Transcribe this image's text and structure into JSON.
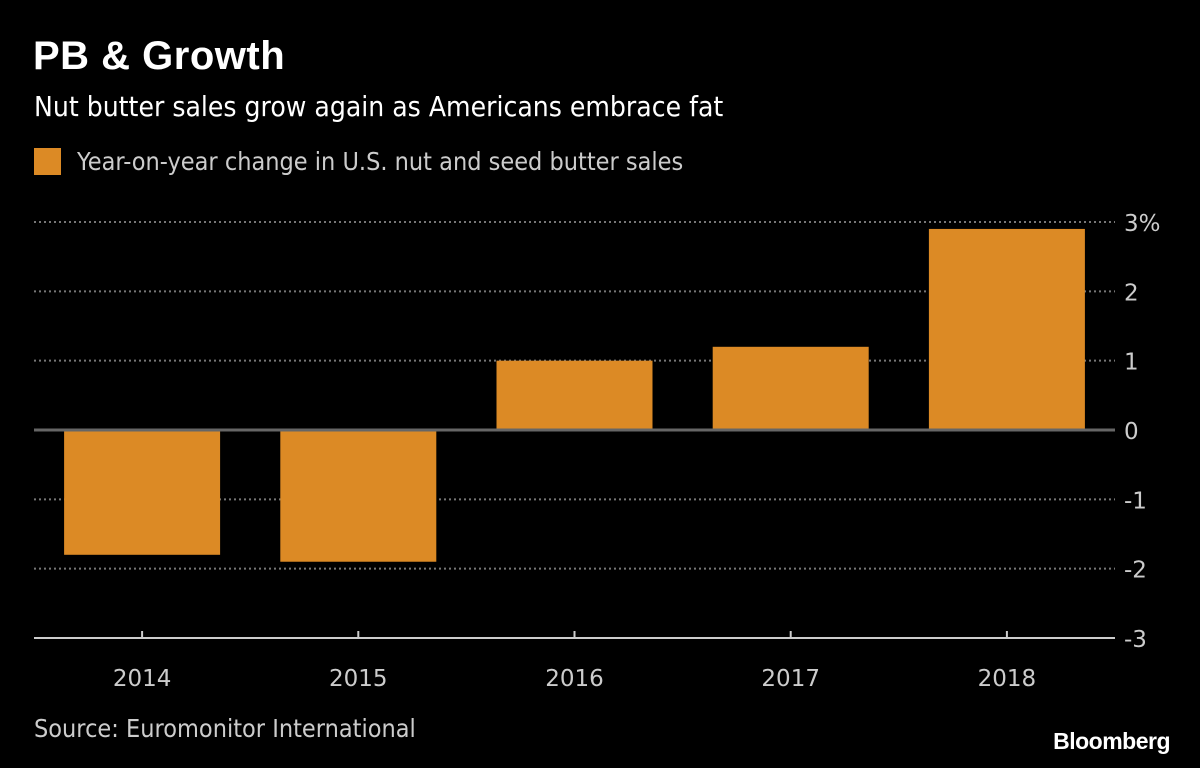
{
  "chart_data": {
    "type": "bar",
    "title": "PB & Growth",
    "subtitle": "Nut butter sales grow again as Americans embrace fat",
    "categories": [
      "2014",
      "2015",
      "2016",
      "2017",
      "2018"
    ],
    "series": [
      {
        "name": "Year-on-year change in U.S. nut and seed butter sales",
        "values": [
          -1.8,
          -1.9,
          1.0,
          1.2,
          2.9
        ],
        "color": "#dc8a25"
      }
    ],
    "ylim": [
      -3,
      3
    ],
    "yticks": [
      3,
      2,
      1,
      0,
      -1,
      -2,
      -3
    ],
    "ytick_labels": [
      "3%",
      "2",
      "1",
      "0",
      "-1",
      "-2",
      "-3"
    ],
    "grid": true,
    "legend_position": "top-left",
    "y_axis_side": "right",
    "source": "Source: Euromonitor International"
  },
  "branding": {
    "logo": "Bloomberg"
  },
  "colors": {
    "background": "#000000",
    "bar": "#dc8a25",
    "grid": "#777777",
    "zero_line": "#666666"
  }
}
